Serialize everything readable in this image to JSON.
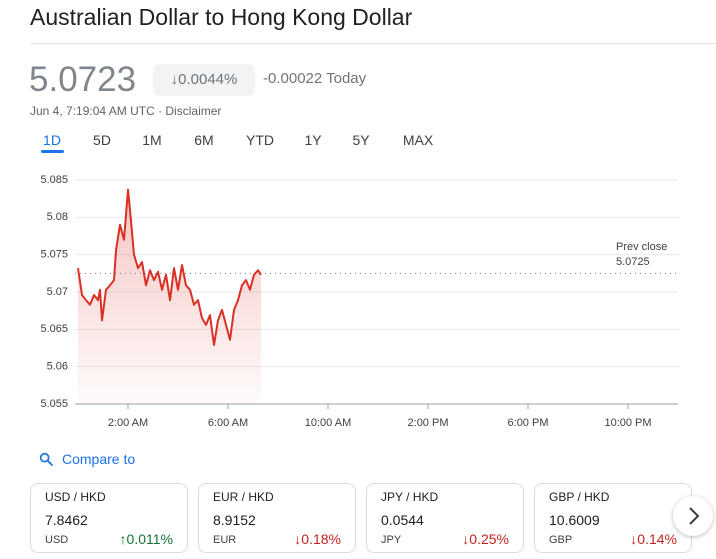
{
  "header": {
    "title": "Australian Dollar to Hong Kong Dollar",
    "price": "5.0723",
    "change_percent": "↓0.0044%",
    "change_today": "-0.00022 Today",
    "timestamp": "Jun 4, 7:19:04 AM UTC · Disclaimer"
  },
  "tabs": [
    "1D",
    "5D",
    "1M",
    "6M",
    "YTD",
    "1Y",
    "5Y",
    "MAX"
  ],
  "active_tab": 0,
  "chart_data": {
    "type": "line",
    "x": [
      0,
      0.16,
      0.32,
      0.48,
      0.64,
      0.8,
      0.88,
      0.96,
      1.12,
      1.28,
      1.44,
      1.52,
      1.68,
      1.84,
      2,
      2.08,
      2.24,
      2.4,
      2.56,
      2.72,
      2.88,
      3.04,
      3.2,
      3.36,
      3.52,
      3.68,
      3.84,
      4,
      4.16,
      4.32,
      4.48,
      4.64,
      4.8,
      4.96,
      5.12,
      5.28,
      5.44,
      5.6,
      5.76,
      5.92,
      6.08,
      6.24,
      6.4,
      6.56,
      6.72,
      6.88,
      7.04,
      7.2,
      7.32
    ],
    "values": [
      5.0732,
      5.0696,
      5.0689,
      5.0683,
      5.0696,
      5.0689,
      5.0703,
      5.0662,
      5.0703,
      5.0709,
      5.0716,
      5.0756,
      5.079,
      5.077,
      5.0837,
      5.081,
      5.075,
      5.0732,
      5.074,
      5.0709,
      5.0729,
      5.0716,
      5.0727,
      5.0703,
      5.0723,
      5.0689,
      5.0732,
      5.0703,
      5.0736,
      5.0709,
      5.0703,
      5.0683,
      5.0689,
      5.0665,
      5.0656,
      5.0669,
      5.0629,
      5.0662,
      5.0676,
      5.0656,
      5.0636,
      5.0676,
      5.0689,
      5.0709,
      5.0716,
      5.0703,
      5.0723,
      5.0729,
      5.0723
    ],
    "color": "#d93025",
    "xlim": [
      0,
      24
    ],
    "xticks": [
      {
        "value": 2,
        "label": "2:00 AM"
      },
      {
        "value": 6,
        "label": "6:00 AM"
      },
      {
        "value": 10,
        "label": "10:00 AM"
      },
      {
        "value": 14,
        "label": "2:00 PM"
      },
      {
        "value": 18,
        "label": "6:00 PM"
      },
      {
        "value": 22,
        "label": "10:00 PM"
      }
    ],
    "ylim": [
      5.055,
      5.085
    ],
    "yticks": [
      5.055,
      5.06,
      5.065,
      5.07,
      5.075,
      5.08,
      5.085
    ],
    "grid": true,
    "reference": {
      "label": "Prev close",
      "value": 5.0725
    }
  },
  "compare": {
    "label": "Compare to",
    "cards": [
      {
        "pair": "USD / HKD",
        "price": "7.8462",
        "currency": "USD",
        "change": "↑0.011%",
        "direction": "up"
      },
      {
        "pair": "EUR / HKD",
        "price": "8.9152",
        "currency": "EUR",
        "change": "↓0.18%",
        "direction": "down"
      },
      {
        "pair": "JPY / HKD",
        "price": "0.0544",
        "currency": "JPY",
        "change": "↓0.25%",
        "direction": "down"
      },
      {
        "pair": "GBP / HKD",
        "price": "10.6009",
        "currency": "GBP",
        "change": "↓0.14%",
        "direction": "down"
      }
    ]
  }
}
